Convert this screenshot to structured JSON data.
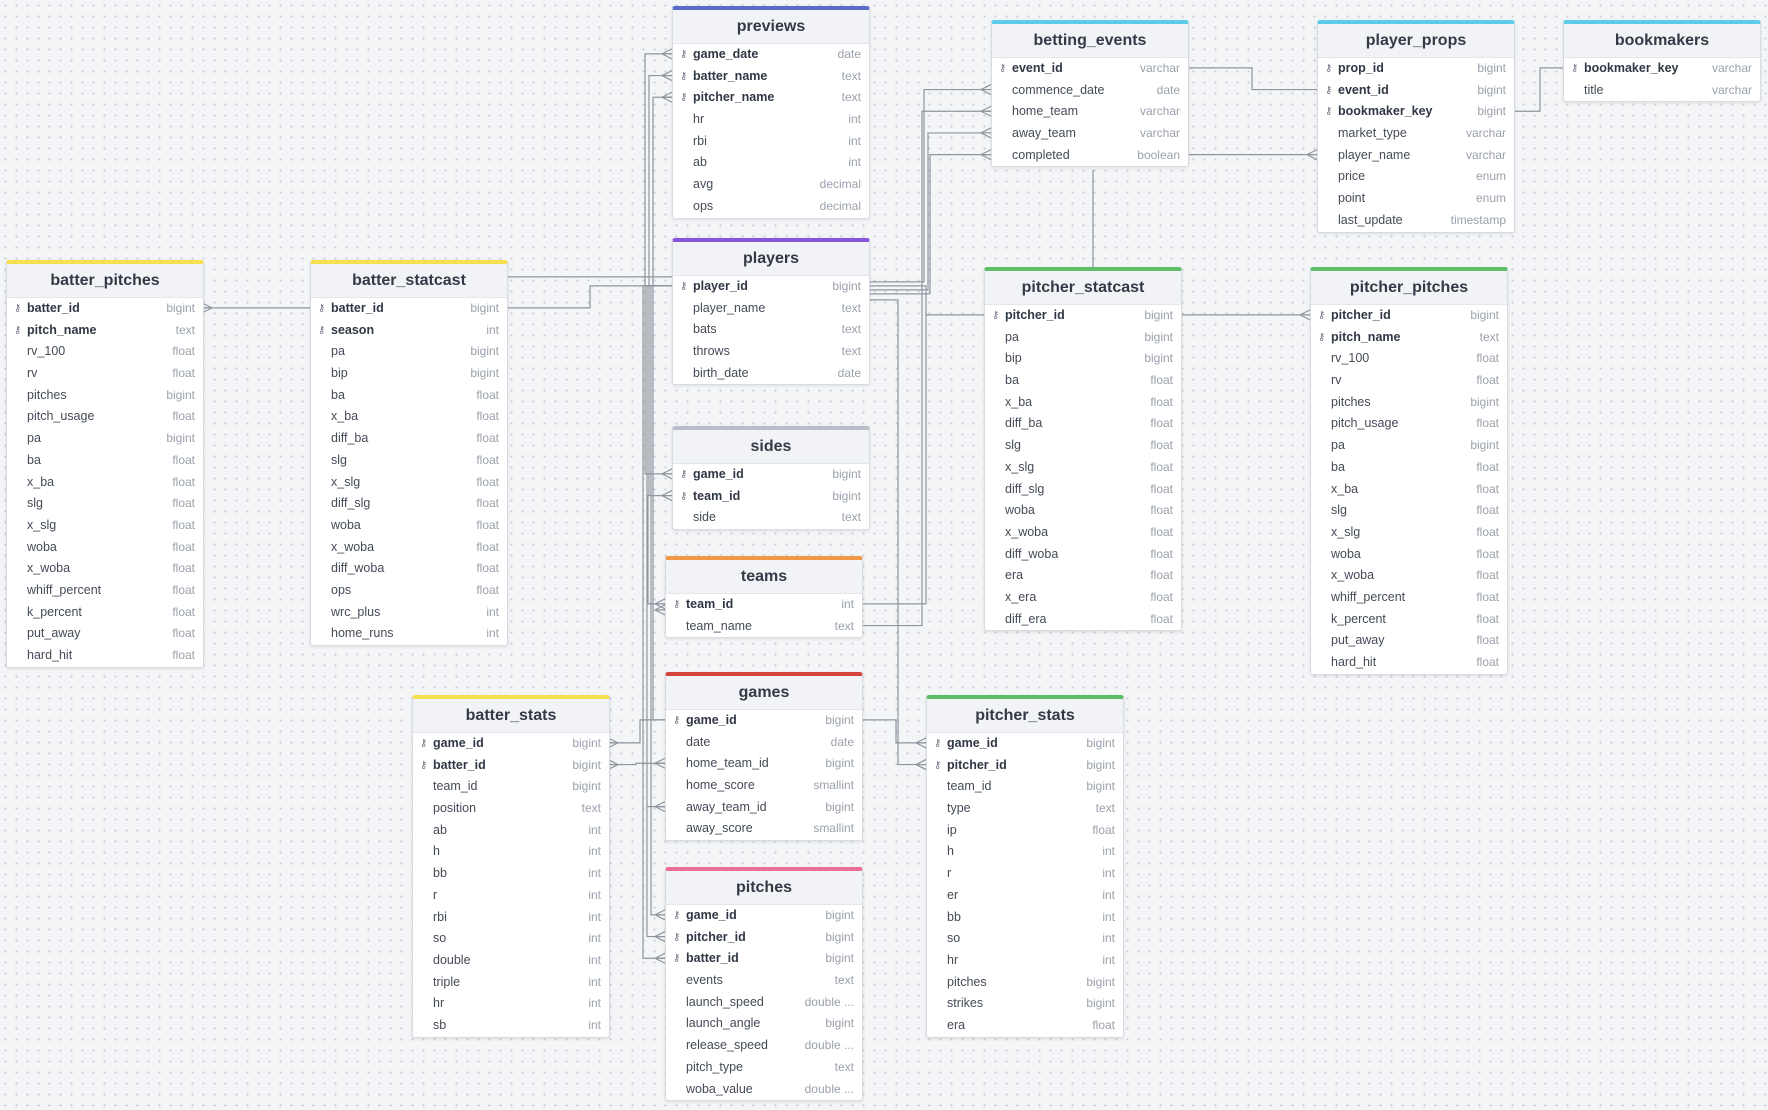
{
  "tables": [
    {
      "id": "previews",
      "name": "previews",
      "color": "#5b6bc8",
      "cols": [
        [
          "game_date",
          "date",
          1
        ],
        [
          "batter_name",
          "text",
          1
        ],
        [
          "pitcher_name",
          "text",
          1
        ],
        [
          "hr",
          "int",
          0
        ],
        [
          "rbi",
          "int",
          0
        ],
        [
          "ab",
          "int",
          0
        ],
        [
          "avg",
          "decimal",
          0
        ],
        [
          "ops",
          "decimal",
          0
        ]
      ]
    },
    {
      "id": "players",
      "name": "players",
      "color": "#8a55d8",
      "cols": [
        [
          "player_id",
          "bigint",
          1
        ],
        [
          "player_name",
          "text",
          0
        ],
        [
          "bats",
          "text",
          0
        ],
        [
          "throws",
          "text",
          0
        ],
        [
          "birth_date",
          "date",
          0
        ]
      ]
    },
    {
      "id": "sides",
      "name": "sides",
      "color": "#b9bec8",
      "cols": [
        [
          "game_id",
          "bigint",
          1
        ],
        [
          "team_id",
          "bigint",
          1
        ],
        [
          "side",
          "text",
          0
        ]
      ]
    },
    {
      "id": "teams",
      "name": "teams",
      "color": "#f0974a",
      "cols": [
        [
          "team_id",
          "int",
          1
        ],
        [
          "team_name",
          "text",
          0
        ]
      ]
    },
    {
      "id": "games",
      "name": "games",
      "color": "#d2453f",
      "cols": [
        [
          "game_id",
          "bigint",
          1
        ],
        [
          "date",
          "date",
          0
        ],
        [
          "home_team_id",
          "bigint",
          0
        ],
        [
          "home_score",
          "smallint",
          0
        ],
        [
          "away_team_id",
          "bigint",
          0
        ],
        [
          "away_score",
          "smallint",
          0
        ]
      ]
    },
    {
      "id": "pitches",
      "name": "pitches",
      "color": "#ea6f93",
      "cols": [
        [
          "game_id",
          "bigint",
          1
        ],
        [
          "pitcher_id",
          "bigint",
          1
        ],
        [
          "batter_id",
          "bigint",
          1
        ],
        [
          "events",
          "text",
          0
        ],
        [
          "launch_speed",
          "double ...",
          0
        ],
        [
          "launch_angle",
          "bigint",
          0
        ],
        [
          "release_speed",
          "double ...",
          0
        ],
        [
          "pitch_type",
          "text",
          0
        ],
        [
          "woba_value",
          "double ...",
          0
        ]
      ]
    },
    {
      "id": "betting_events",
      "name": "betting_events",
      "color": "#5fcbea",
      "cols": [
        [
          "event_id",
          "varchar",
          1
        ],
        [
          "commence_date",
          "date",
          0
        ],
        [
          "home_team",
          "varchar",
          0
        ],
        [
          "away_team",
          "varchar",
          0
        ],
        [
          "completed",
          "boolean",
          0
        ]
      ]
    },
    {
      "id": "player_props",
      "name": "player_props",
      "color": "#5fcbea",
      "cols": [
        [
          "prop_id",
          "bigint",
          1
        ],
        [
          "event_id",
          "bigint",
          1
        ],
        [
          "bookmaker_key",
          "bigint",
          1
        ],
        [
          "market_type",
          "varchar",
          0
        ],
        [
          "player_name",
          "varchar",
          0
        ],
        [
          "price",
          "enum",
          0
        ],
        [
          "point",
          "enum",
          0
        ],
        [
          "last_update",
          "timestamp",
          0
        ]
      ]
    },
    {
      "id": "bookmakers",
      "name": "bookmakers",
      "color": "#5fcbea",
      "cols": [
        [
          "bookmaker_key",
          "varchar",
          1
        ],
        [
          "title",
          "varchar",
          0
        ]
      ]
    },
    {
      "id": "batter_pitches",
      "name": "batter_pitches",
      "color": "#f5e052",
      "cols": [
        [
          "batter_id",
          "bigint",
          1
        ],
        [
          "pitch_name",
          "text",
          1
        ],
        [
          "rv_100",
          "float",
          0
        ],
        [
          "rv",
          "float",
          0
        ],
        [
          "pitches",
          "bigint",
          0
        ],
        [
          "pitch_usage",
          "float",
          0
        ],
        [
          "pa",
          "bigint",
          0
        ],
        [
          "ba",
          "float",
          0
        ],
        [
          "x_ba",
          "float",
          0
        ],
        [
          "slg",
          "float",
          0
        ],
        [
          "x_slg",
          "float",
          0
        ],
        [
          "woba",
          "float",
          0
        ],
        [
          "x_woba",
          "float",
          0
        ],
        [
          "whiff_percent",
          "float",
          0
        ],
        [
          "k_percent",
          "float",
          0
        ],
        [
          "put_away",
          "float",
          0
        ],
        [
          "hard_hit",
          "float",
          0
        ]
      ]
    },
    {
      "id": "batter_statcast",
      "name": "batter_statcast",
      "color": "#f5e052",
      "cols": [
        [
          "batter_id",
          "bigint",
          1
        ],
        [
          "season",
          "int",
          1
        ],
        [
          "pa",
          "bigint",
          0
        ],
        [
          "bip",
          "bigint",
          0
        ],
        [
          "ba",
          "float",
          0
        ],
        [
          "x_ba",
          "float",
          0
        ],
        [
          "diff_ba",
          "float",
          0
        ],
        [
          "slg",
          "float",
          0
        ],
        [
          "x_slg",
          "float",
          0
        ],
        [
          "diff_slg",
          "float",
          0
        ],
        [
          "woba",
          "float",
          0
        ],
        [
          "x_woba",
          "float",
          0
        ],
        [
          "diff_woba",
          "float",
          0
        ],
        [
          "ops",
          "float",
          0
        ],
        [
          "wrc_plus",
          "int",
          0
        ],
        [
          "home_runs",
          "int",
          0
        ]
      ]
    },
    {
      "id": "batter_stats",
      "name": "batter_stats",
      "color": "#f5e052",
      "cols": [
        [
          "game_id",
          "bigint",
          1
        ],
        [
          "batter_id",
          "bigint",
          1
        ],
        [
          "team_id",
          "bigint",
          0
        ],
        [
          "position",
          "text",
          0
        ],
        [
          "ab",
          "int",
          0
        ],
        [
          "h",
          "int",
          0
        ],
        [
          "bb",
          "int",
          0
        ],
        [
          "r",
          "int",
          0
        ],
        [
          "rbi",
          "int",
          0
        ],
        [
          "so",
          "int",
          0
        ],
        [
          "double",
          "int",
          0
        ],
        [
          "triple",
          "int",
          0
        ],
        [
          "hr",
          "int",
          0
        ],
        [
          "sb",
          "int",
          0
        ]
      ]
    },
    {
      "id": "pitcher_statcast",
      "name": "pitcher_statcast",
      "color": "#5dbd68",
      "cols": [
        [
          "pitcher_id",
          "bigint",
          1
        ],
        [
          "pa",
          "bigint",
          0
        ],
        [
          "bip",
          "bigint",
          0
        ],
        [
          "ba",
          "float",
          0
        ],
        [
          "x_ba",
          "float",
          0
        ],
        [
          "diff_ba",
          "float",
          0
        ],
        [
          "slg",
          "float",
          0
        ],
        [
          "x_slg",
          "float",
          0
        ],
        [
          "diff_slg",
          "float",
          0
        ],
        [
          "woba",
          "float",
          0
        ],
        [
          "x_woba",
          "float",
          0
        ],
        [
          "diff_woba",
          "float",
          0
        ],
        [
          "era",
          "float",
          0
        ],
        [
          "x_era",
          "float",
          0
        ],
        [
          "diff_era",
          "float",
          0
        ]
      ]
    },
    {
      "id": "pitcher_pitches",
      "name": "pitcher_pitches",
      "color": "#5dbd68",
      "cols": [
        [
          "pitcher_id",
          "bigint",
          1
        ],
        [
          "pitch_name",
          "text",
          1
        ],
        [
          "rv_100",
          "float",
          0
        ],
        [
          "rv",
          "float",
          0
        ],
        [
          "pitches",
          "bigint",
          0
        ],
        [
          "pitch_usage",
          "float",
          0
        ],
        [
          "pa",
          "bigint",
          0
        ],
        [
          "ba",
          "float",
          0
        ],
        [
          "x_ba",
          "float",
          0
        ],
        [
          "slg",
          "float",
          0
        ],
        [
          "x_slg",
          "float",
          0
        ],
        [
          "woba",
          "float",
          0
        ],
        [
          "x_woba",
          "float",
          0
        ],
        [
          "whiff_percent",
          "float",
          0
        ],
        [
          "k_percent",
          "float",
          0
        ],
        [
          "put_away",
          "float",
          0
        ],
        [
          "hard_hit",
          "float",
          0
        ]
      ]
    },
    {
      "id": "pitcher_stats",
      "name": "pitcher_stats",
      "color": "#5dbd68",
      "cols": [
        [
          "game_id",
          "bigint",
          1
        ],
        [
          "pitcher_id",
          "bigint",
          1
        ],
        [
          "team_id",
          "bigint",
          0
        ],
        [
          "type",
          "text",
          0
        ],
        [
          "ip",
          "float",
          0
        ],
        [
          "h",
          "int",
          0
        ],
        [
          "r",
          "int",
          0
        ],
        [
          "er",
          "int",
          0
        ],
        [
          "bb",
          "int",
          0
        ],
        [
          "so",
          "int",
          0
        ],
        [
          "hr",
          "int",
          0
        ],
        [
          "pitches",
          "bigint",
          0
        ],
        [
          "strikes",
          "bigint",
          0
        ],
        [
          "era",
          "float",
          0
        ]
      ]
    }
  ],
  "colors": {
    "edge": "#8f959f",
    "canvas": "#f4f5f7"
  }
}
